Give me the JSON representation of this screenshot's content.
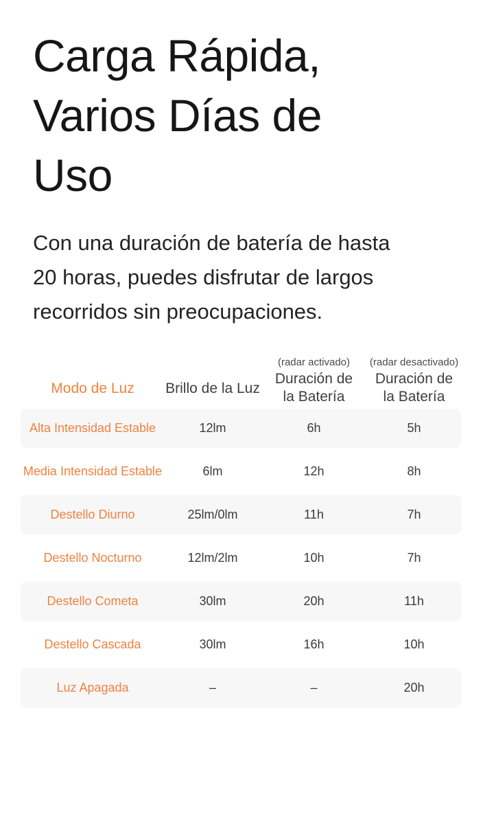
{
  "page": {
    "title": "Carga Rápida,\nVarios Días de\nUso",
    "subtitle": "Con una duración de batería de hasta\n20 horas, puedes disfrutar de largos\nrecorridos sin preocupaciones."
  },
  "colors": {
    "accent_orange": "#F0823F",
    "row_stripe": "#F7F7F8"
  },
  "table": {
    "columns": [
      {
        "label": "Modo de Luz"
      },
      {
        "label": "Brillo de la Luz"
      },
      {
        "note": "(radar activado)",
        "label": "Duración de\nla Batería"
      },
      {
        "note": "(radar desactivado)",
        "label": "Duración de\nla Batería"
      }
    ],
    "rows": [
      {
        "mode": "Alta Intensidad Estable",
        "brightness": "12lm",
        "radar_on": "6h",
        "radar_off": "5h"
      },
      {
        "mode": "Media Intensidad Estable",
        "brightness": "6lm",
        "radar_on": "12h",
        "radar_off": "8h"
      },
      {
        "mode": "Destello Diurno",
        "brightness": "25lm/0lm",
        "radar_on": "11h",
        "radar_off": "7h"
      },
      {
        "mode": "Destello Nocturno",
        "brightness": "12lm/2lm",
        "radar_on": "10h",
        "radar_off": "7h"
      },
      {
        "mode": "Destello Cometa",
        "brightness": "30lm",
        "radar_on": "20h",
        "radar_off": "11h"
      },
      {
        "mode": "Destello Cascada",
        "brightness": "30lm",
        "radar_on": "16h",
        "radar_off": "10h"
      },
      {
        "mode": "Luz Apagada",
        "brightness": "–",
        "radar_on": "–",
        "radar_off": "20h"
      }
    ]
  }
}
